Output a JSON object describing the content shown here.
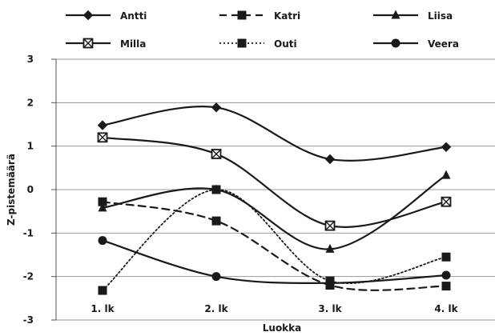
{
  "chart_data": {
    "type": "line",
    "title": "",
    "xlabel": "Luokka",
    "ylabel": "Z-pistemäärä",
    "categories": [
      "1. lk",
      "2. lk",
      "3. lk",
      "4. lk"
    ],
    "yticks": [
      -3,
      -2,
      -1,
      0,
      1,
      2,
      3
    ],
    "ylim": [
      -3,
      3
    ],
    "grid": "horizontal",
    "legend_position": "top",
    "series": [
      {
        "name": "Antti",
        "marker": "diamond",
        "dash": "solid",
        "values": [
          1.48,
          1.89,
          0.7,
          0.98
        ]
      },
      {
        "name": "Katri",
        "marker": "square",
        "dash": "dashed",
        "values": [
          -0.28,
          -0.72,
          -2.2,
          -2.22
        ]
      },
      {
        "name": "Liisa",
        "marker": "triangle",
        "dash": "solid",
        "values": [
          -0.42,
          0.0,
          -1.37,
          0.33
        ]
      },
      {
        "name": "Milla",
        "marker": "boxx",
        "dash": "solid",
        "values": [
          1.2,
          0.82,
          -0.83,
          -0.28
        ]
      },
      {
        "name": "Outi",
        "marker": "square",
        "dash": "dotted",
        "values": [
          -2.32,
          0.0,
          -2.1,
          -1.55
        ]
      },
      {
        "name": "Veera",
        "marker": "circle",
        "dash": "solid",
        "values": [
          -1.17,
          -2.0,
          -2.15,
          -1.97
        ]
      }
    ]
  }
}
